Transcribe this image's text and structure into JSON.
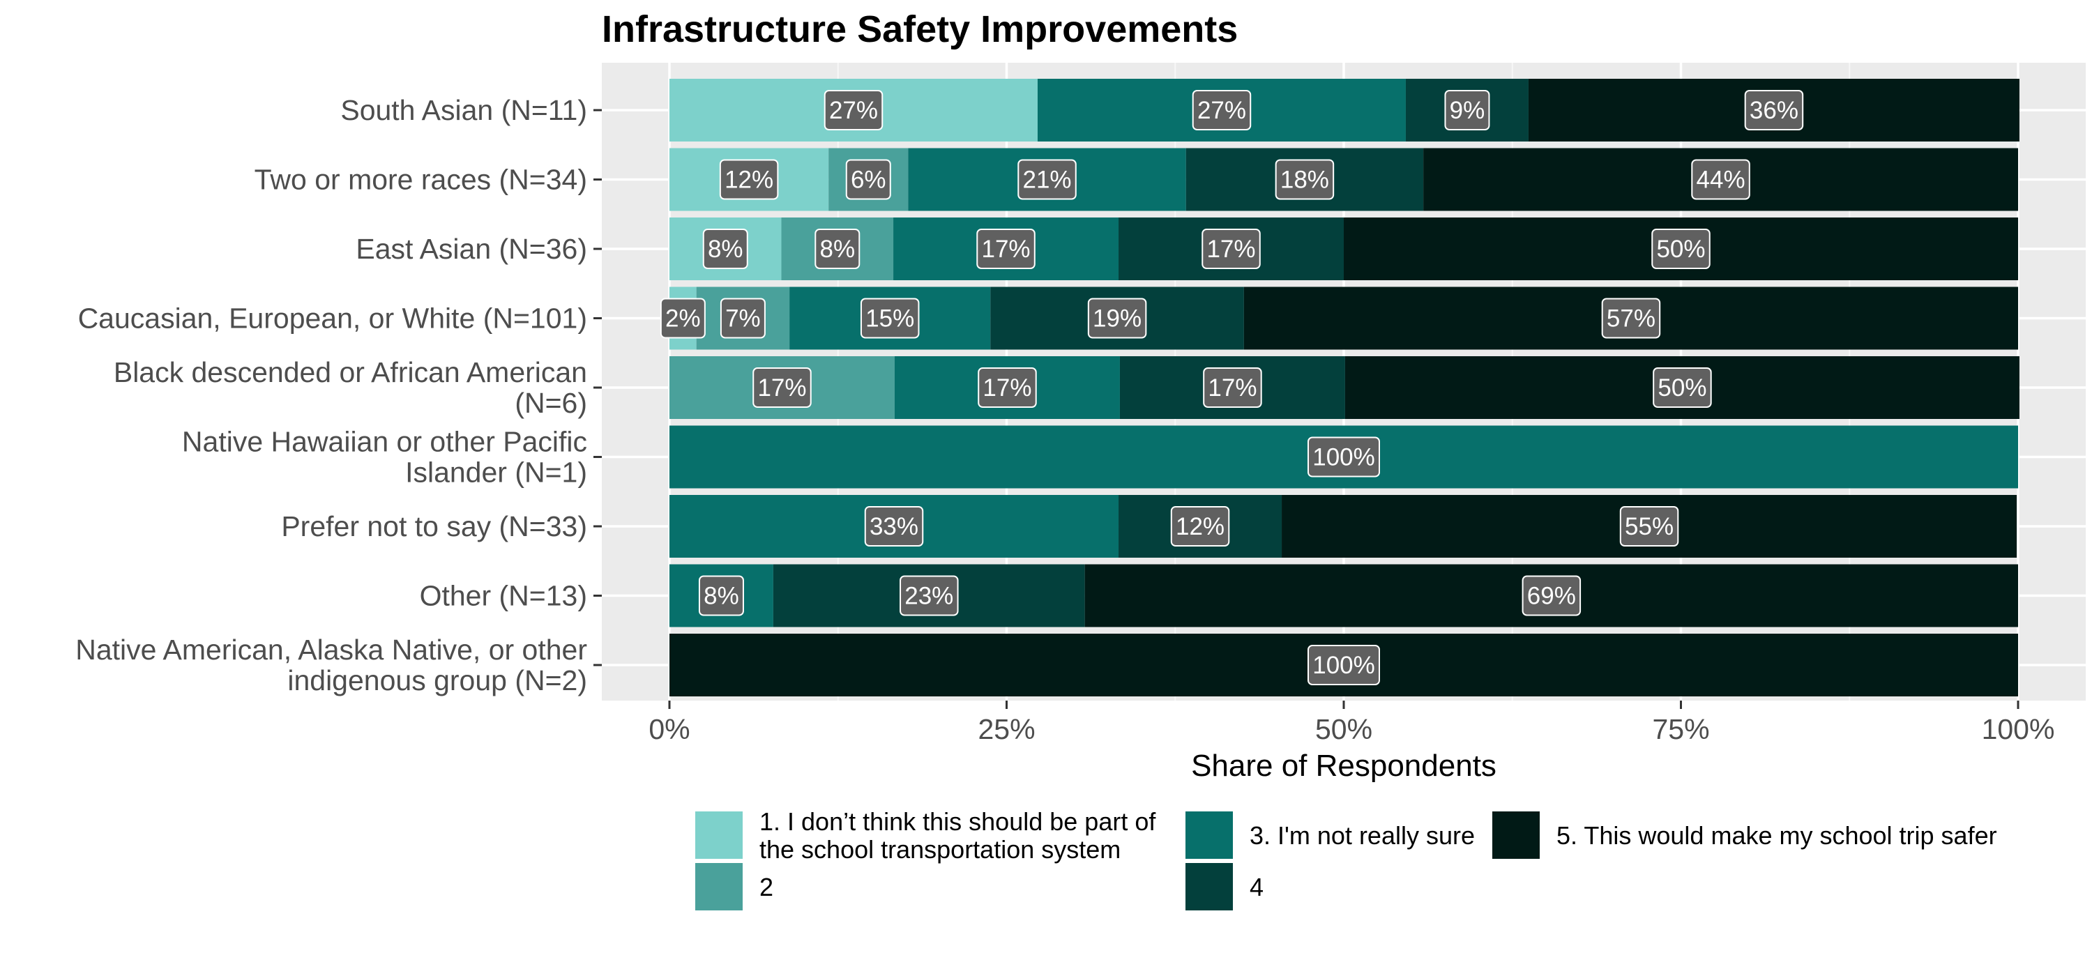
{
  "chart_data": {
    "type": "bar",
    "orientation": "horizontal",
    "stacked": true,
    "title": "Infrastructure Safety Improvements",
    "xlabel": "Share of Respondents",
    "ylabel": "",
    "xlim": [
      0,
      1
    ],
    "x_ticks": [
      "0%",
      "25%",
      "50%",
      "75%",
      "100%"
    ],
    "x_tick_values": [
      0,
      0.25,
      0.5,
      0.75,
      1
    ],
    "grid": true,
    "legend_position": "bottom",
    "categories": [
      [
        "South Asian (N=11)"
      ],
      [
        "Two or more races (N=34)"
      ],
      [
        "East Asian (N=36)"
      ],
      [
        "Caucasian, European, or White (N=101)"
      ],
      [
        "Black descended or African American",
        "(N=6)"
      ],
      [
        "Native Hawaiian or other Pacific",
        "Islander (N=1)"
      ],
      [
        "Prefer not to say (N=33)"
      ],
      [
        "Other (N=13)"
      ],
      [
        "Native American, Alaska Native, or other",
        "indigenous group (N=2)"
      ]
    ],
    "series": [
      {
        "name": [
          "1. I don’t think this should be part of",
          "the school transportation system"
        ],
        "color": "#7dd1cb",
        "values": [
          0.273,
          0.118,
          0.083,
          0.02,
          0,
          0,
          0,
          0,
          0
        ],
        "labels": [
          "27%",
          "12%",
          "8%",
          "2%",
          "",
          "",
          "",
          "",
          ""
        ]
      },
      {
        "name": [
          "2"
        ],
        "color": "#4aa19b",
        "values": [
          0,
          0.059,
          0.083,
          0.069,
          0.167,
          0,
          0,
          0,
          0
        ],
        "labels": [
          "",
          "6%",
          "8%",
          "7%",
          "17%",
          "",
          "",
          "",
          ""
        ]
      },
      {
        "name": [
          "3. I'm not really sure"
        ],
        "color": "#07706b",
        "values": [
          0.273,
          0.206,
          0.167,
          0.149,
          0.167,
          1.0,
          0.333,
          0.077,
          0
        ],
        "labels": [
          "27%",
          "21%",
          "17%",
          "15%",
          "17%",
          "100%",
          "33%",
          "8%",
          ""
        ]
      },
      {
        "name": [
          "4"
        ],
        "color": "#03403c",
        "values": [
          0.091,
          0.176,
          0.167,
          0.188,
          0.167,
          0,
          0.121,
          0.231,
          0
        ],
        "labels": [
          "9%",
          "18%",
          "17%",
          "19%",
          "17%",
          "",
          "12%",
          "23%",
          ""
        ]
      },
      {
        "name": [
          "5. This would make my school trip safer"
        ],
        "color": "#011a16",
        "values": [
          0.364,
          0.441,
          0.5,
          0.574,
          0.5,
          0,
          0.545,
          0.692,
          1.0
        ],
        "labels": [
          "36%",
          "44%",
          "50%",
          "57%",
          "50%",
          "",
          "55%",
          "69%",
          "100%"
        ]
      }
    ]
  }
}
